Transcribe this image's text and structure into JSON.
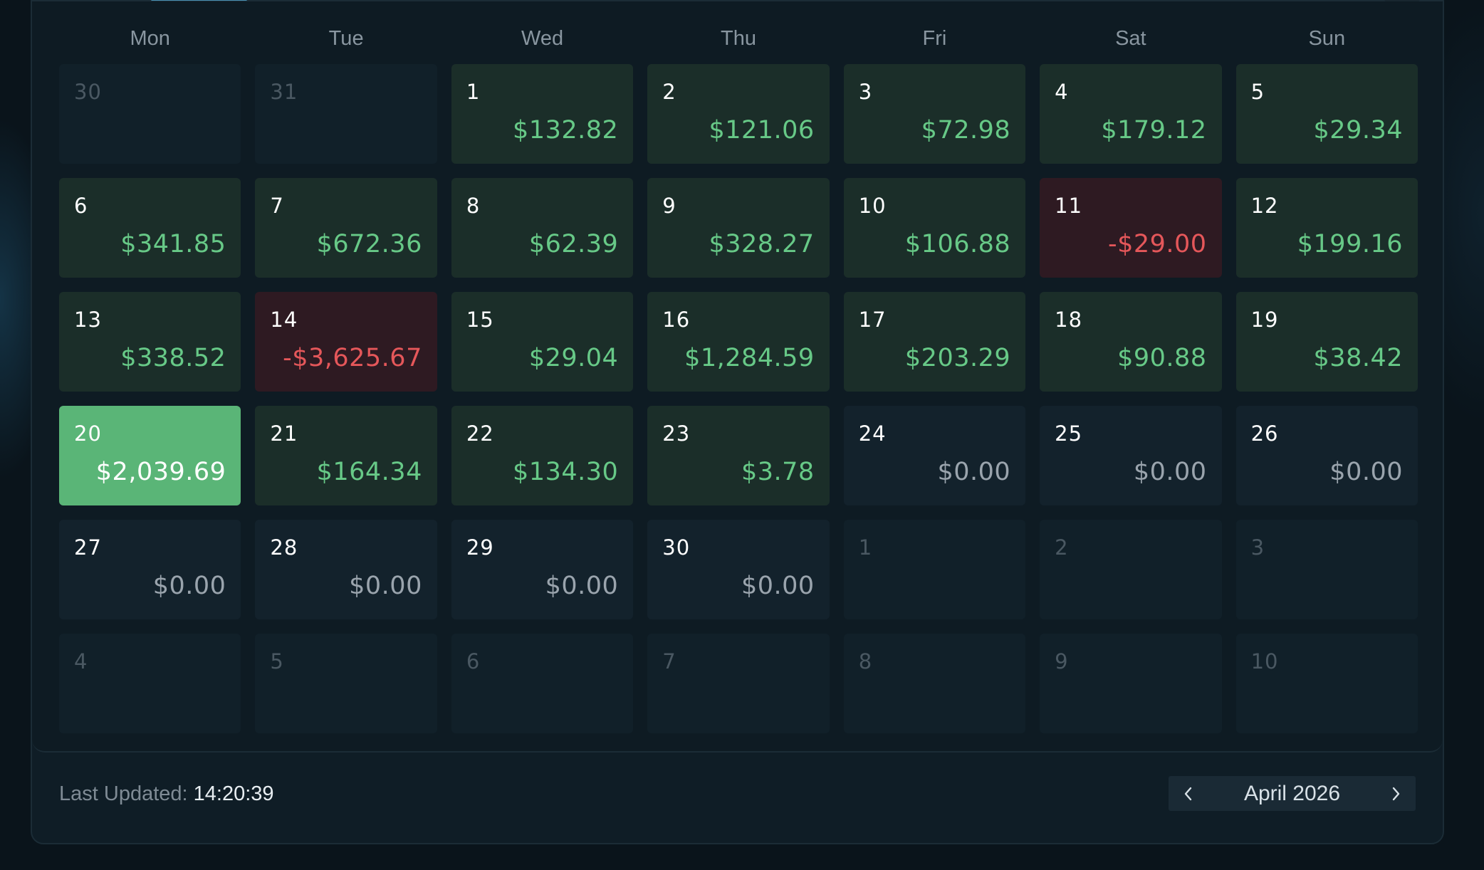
{
  "calendar": {
    "weekdays": [
      "Mon",
      "Tue",
      "Wed",
      "Thu",
      "Fri",
      "Sat",
      "Sun"
    ],
    "cells": [
      {
        "day": "30",
        "amount": "",
        "state": "out"
      },
      {
        "day": "31",
        "amount": "",
        "state": "out"
      },
      {
        "day": "1",
        "amount": "$132.82",
        "state": "pos"
      },
      {
        "day": "2",
        "amount": "$121.06",
        "state": "pos"
      },
      {
        "day": "3",
        "amount": "$72.98",
        "state": "pos"
      },
      {
        "day": "4",
        "amount": "$179.12",
        "state": "pos"
      },
      {
        "day": "5",
        "amount": "$29.34",
        "state": "pos"
      },
      {
        "day": "6",
        "amount": "$341.85",
        "state": "pos"
      },
      {
        "day": "7",
        "amount": "$672.36",
        "state": "pos"
      },
      {
        "day": "8",
        "amount": "$62.39",
        "state": "pos"
      },
      {
        "day": "9",
        "amount": "$328.27",
        "state": "pos"
      },
      {
        "day": "10",
        "amount": "$106.88",
        "state": "pos"
      },
      {
        "day": "11",
        "amount": "-$29.00",
        "state": "neg"
      },
      {
        "day": "12",
        "amount": "$199.16",
        "state": "pos"
      },
      {
        "day": "13",
        "amount": "$338.52",
        "state": "pos"
      },
      {
        "day": "14",
        "amount": "-$3,625.67",
        "state": "neg"
      },
      {
        "day": "15",
        "amount": "$29.04",
        "state": "pos"
      },
      {
        "day": "16",
        "amount": "$1,284.59",
        "state": "pos"
      },
      {
        "day": "17",
        "amount": "$203.29",
        "state": "pos"
      },
      {
        "day": "18",
        "amount": "$90.88",
        "state": "pos"
      },
      {
        "day": "19",
        "amount": "$38.42",
        "state": "pos"
      },
      {
        "day": "20",
        "amount": "$2,039.69",
        "state": "today"
      },
      {
        "day": "21",
        "amount": "$164.34",
        "state": "pos"
      },
      {
        "day": "22",
        "amount": "$134.30",
        "state": "pos"
      },
      {
        "day": "23",
        "amount": "$3.78",
        "state": "pos"
      },
      {
        "day": "24",
        "amount": "$0.00",
        "state": "zero"
      },
      {
        "day": "25",
        "amount": "$0.00",
        "state": "zero"
      },
      {
        "day": "26",
        "amount": "$0.00",
        "state": "zero"
      },
      {
        "day": "27",
        "amount": "$0.00",
        "state": "zero"
      },
      {
        "day": "28",
        "amount": "$0.00",
        "state": "zero"
      },
      {
        "day": "29",
        "amount": "$0.00",
        "state": "zero"
      },
      {
        "day": "30",
        "amount": "$0.00",
        "state": "zero"
      },
      {
        "day": "1",
        "amount": "",
        "state": "out"
      },
      {
        "day": "2",
        "amount": "",
        "state": "out"
      },
      {
        "day": "3",
        "amount": "",
        "state": "out"
      },
      {
        "day": "4",
        "amount": "",
        "state": "out"
      },
      {
        "day": "5",
        "amount": "",
        "state": "out"
      },
      {
        "day": "6",
        "amount": "",
        "state": "out"
      },
      {
        "day": "7",
        "amount": "",
        "state": "out"
      },
      {
        "day": "8",
        "amount": "",
        "state": "out"
      },
      {
        "day": "9",
        "amount": "",
        "state": "out"
      },
      {
        "day": "10",
        "amount": "",
        "state": "out"
      }
    ]
  },
  "footer": {
    "last_updated_label": "Last Updated:",
    "last_updated_time": "14:20:39",
    "month_label": "April 2026",
    "prev_icon": "chevron-left-icon",
    "next_icon": "chevron-right-icon"
  },
  "colors": {
    "positive": "#67c987",
    "negative": "#e5575a",
    "today_bg": "#5ab577",
    "accent": "#4a91b3"
  }
}
